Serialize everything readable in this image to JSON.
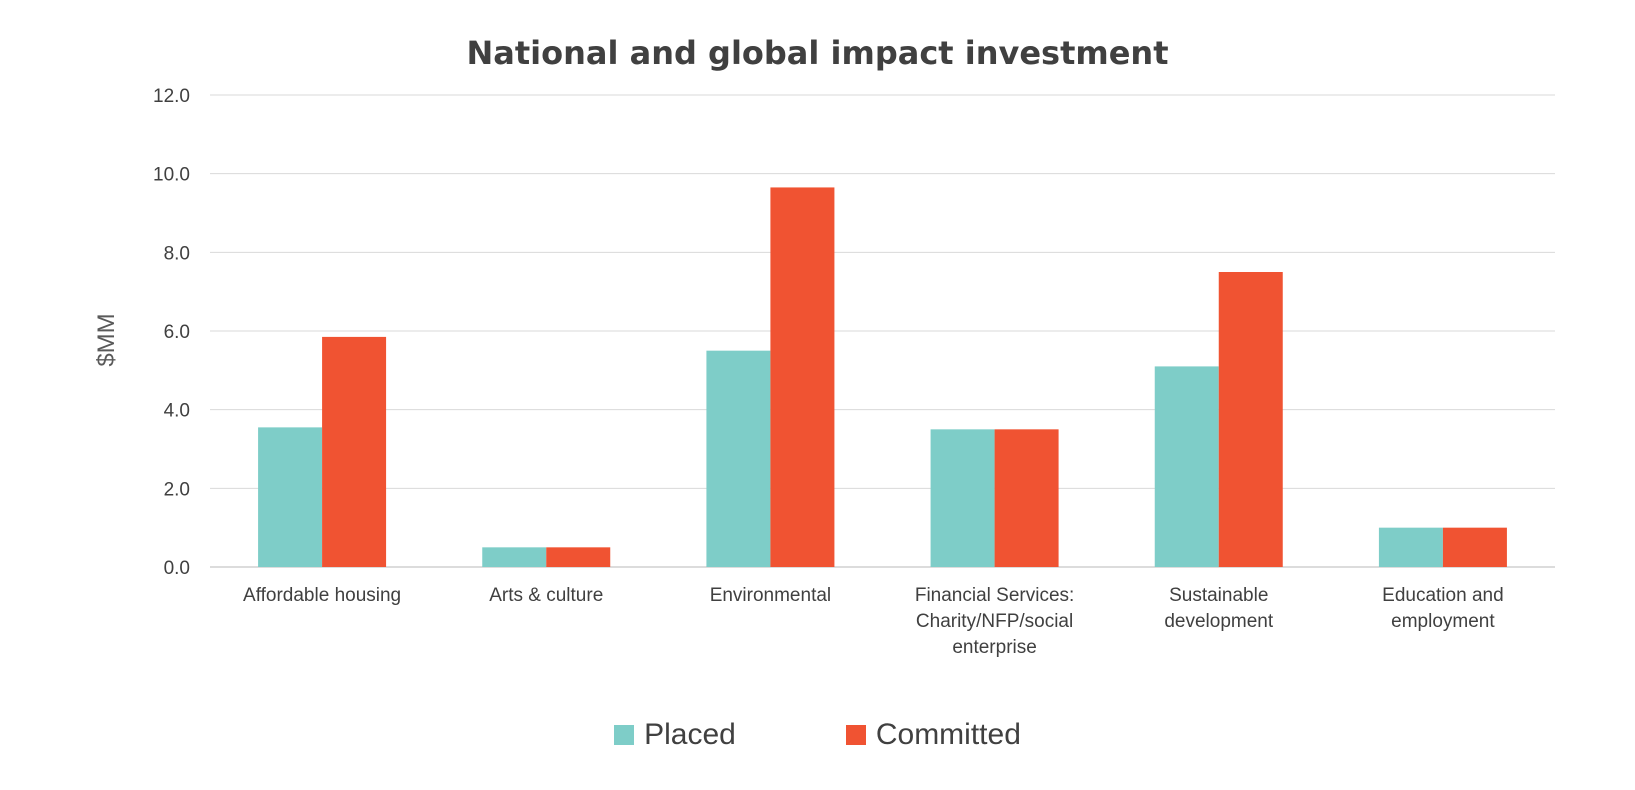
{
  "chart_data": {
    "type": "bar",
    "title": "National and global impact investment",
    "xlabel": "",
    "ylabel": "$MM",
    "ylim": [
      0,
      12
    ],
    "yticks": [
      "0.0",
      "2.0",
      "4.0",
      "6.0",
      "8.0",
      "10.0",
      "12.0"
    ],
    "grid": true,
    "legend_position": "bottom",
    "categories": [
      [
        "Affordable housing"
      ],
      [
        "Arts & culture"
      ],
      [
        "Environmental"
      ],
      [
        "Financial Services:",
        "Charity/NFP/social",
        "enterprise"
      ],
      [
        "Sustainable",
        "development"
      ],
      [
        "Education and",
        "employment"
      ]
    ],
    "series": [
      {
        "name": "Placed",
        "color": "#7ECDC8",
        "values": [
          3.55,
          0.5,
          5.5,
          3.5,
          5.1,
          1.0
        ]
      },
      {
        "name": "Committed",
        "color": "#F05332",
        "values": [
          5.85,
          0.5,
          9.65,
          3.5,
          7.5,
          1.0
        ]
      }
    ]
  }
}
